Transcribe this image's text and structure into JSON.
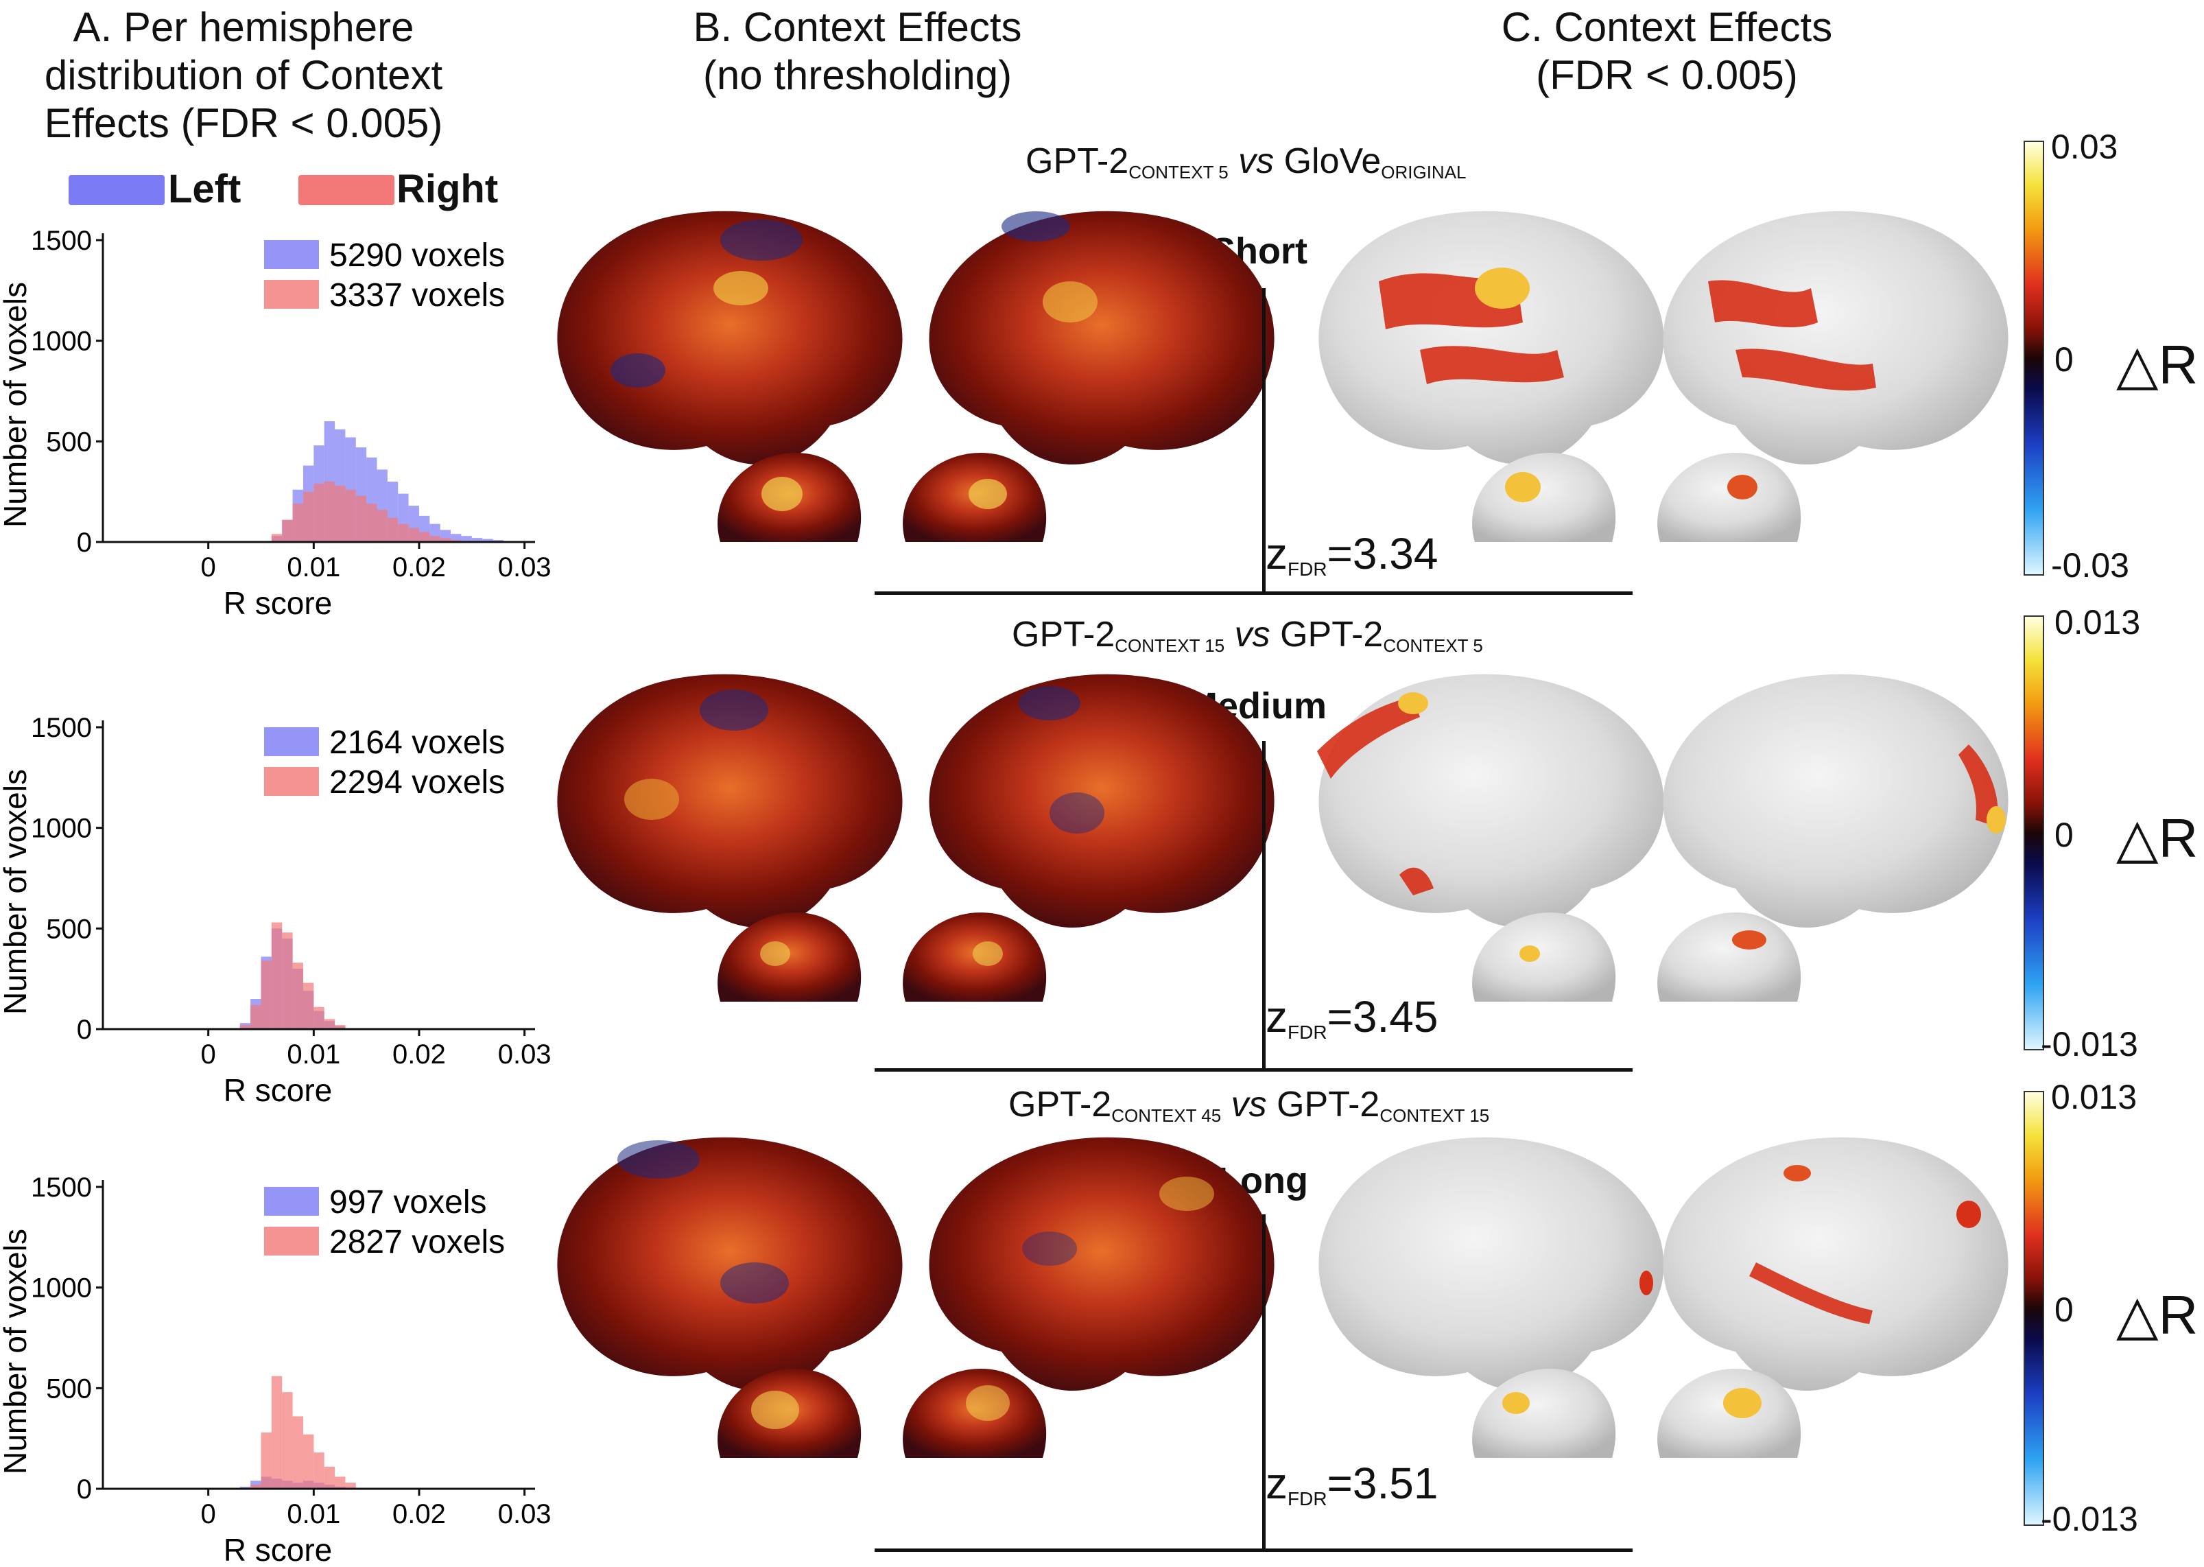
{
  "headers": {
    "a": [
      "A. Per hemisphere",
      "distribution of Context",
      "Effects (FDR < 0.005)"
    ],
    "b": [
      "B. Context Effects",
      "(no thresholding)"
    ],
    "c": [
      "C. Context Effects",
      "(FDR < 0.005)"
    ]
  },
  "legend": {
    "left": "Left",
    "right": "Right",
    "left_color": "#7b7bf5",
    "right_color": "#f37878"
  },
  "rows": [
    {
      "title_main_a": "GPT-2",
      "title_sub_a": "CONTEXT 5",
      "vs": "vs",
      "title_main_b": "GloVe",
      "title_sub_b": "ORIGINAL",
      "condition": "Short",
      "z_main": "z",
      "z_sub": "FDR",
      "z_value": "=3.34",
      "cbar_top": "0.03",
      "cbar_mid": "0",
      "cbar_bottom": "-0.03",
      "delta": "△R"
    },
    {
      "title_main_a": "GPT-2",
      "title_sub_a": "CONTEXT 15",
      "vs": "vs",
      "title_main_b": "GPT-2",
      "title_sub_b": "CONTEXT 5",
      "condition": "Medium",
      "z_main": "z",
      "z_sub": "FDR",
      "z_value": "=3.45",
      "cbar_top": "0.013",
      "cbar_mid": "0",
      "cbar_bottom": "-0.013",
      "delta": "△R"
    },
    {
      "title_main_a": "GPT-2",
      "title_sub_a": "CONTEXT 45",
      "vs": "vs",
      "title_main_b": "GPT-2",
      "title_sub_b": "CONTEXT 15",
      "condition": "Long",
      "z_main": "z",
      "z_sub": "FDR",
      "z_value": "=3.51",
      "cbar_top": "0.013",
      "cbar_mid": "0",
      "cbar_bottom": "-0.013",
      "delta": "△R"
    }
  ],
  "chart_data": [
    {
      "type": "bar",
      "xlabel": "R score",
      "ylabel": "Number of voxels",
      "xlim": [
        -0.01,
        0.031
      ],
      "ylim": [
        0,
        1500
      ],
      "xticks": [
        "0",
        "0.01",
        "0.02",
        "0.03"
      ],
      "yticks": [
        "0",
        "500",
        "1000",
        "1500"
      ],
      "bin_width": 0.001,
      "series": [
        {
          "name": "5290 voxels",
          "color": "#7b7bf5",
          "bins": [
            0.006,
            0.007,
            0.008,
            0.009,
            0.01,
            0.011,
            0.012,
            0.013,
            0.014,
            0.015,
            0.016,
            0.017,
            0.018,
            0.019,
            0.02,
            0.021,
            0.022,
            0.023,
            0.024,
            0.025,
            0.026,
            0.027,
            0.028
          ],
          "values": [
            30,
            110,
            260,
            380,
            480,
            600,
            560,
            520,
            470,
            420,
            360,
            300,
            240,
            180,
            130,
            90,
            60,
            40,
            30,
            20,
            15,
            10,
            5
          ]
        },
        {
          "name": "3337 voxels",
          "color": "#f37878",
          "bins": [
            0.006,
            0.007,
            0.008,
            0.009,
            0.01,
            0.011,
            0.012,
            0.013,
            0.014,
            0.015,
            0.016,
            0.017,
            0.018,
            0.019,
            0.02,
            0.021,
            0.022,
            0.023,
            0.024,
            0.025
          ],
          "values": [
            40,
            110,
            190,
            250,
            290,
            300,
            280,
            260,
            230,
            190,
            160,
            120,
            90,
            70,
            50,
            30,
            20,
            10,
            5,
            3
          ]
        }
      ]
    },
    {
      "type": "bar",
      "xlabel": "R score",
      "ylabel": "Number of voxels",
      "xlim": [
        -0.01,
        0.031
      ],
      "ylim": [
        0,
        1500
      ],
      "xticks": [
        "0",
        "0.01",
        "0.02",
        "0.03"
      ],
      "yticks": [
        "0",
        "500",
        "1000",
        "1500"
      ],
      "bin_width": 0.001,
      "series": [
        {
          "name": "2164 voxels",
          "color": "#7b7bf5",
          "bins": [
            0.003,
            0.004,
            0.005,
            0.006,
            0.007,
            0.008,
            0.009,
            0.01,
            0.011,
            0.012
          ],
          "values": [
            30,
            150,
            360,
            500,
            450,
            300,
            190,
            90,
            40,
            15
          ]
        },
        {
          "name": "2294 voxels",
          "color": "#f37878",
          "bins": [
            0.003,
            0.004,
            0.005,
            0.006,
            0.007,
            0.008,
            0.009,
            0.01,
            0.011,
            0.012
          ],
          "values": [
            20,
            120,
            340,
            530,
            480,
            330,
            230,
            110,
            50,
            20
          ]
        }
      ]
    },
    {
      "type": "bar",
      "xlabel": "R score",
      "ylabel": "Number of voxels",
      "xlim": [
        -0.01,
        0.031
      ],
      "ylim": [
        0,
        1500
      ],
      "xticks": [
        "0",
        "0.01",
        "0.02",
        "0.03"
      ],
      "yticks": [
        "0",
        "500",
        "1000",
        "1500"
      ],
      "bin_width": 0.001,
      "series": [
        {
          "name": "997 voxels",
          "color": "#7b7bf5",
          "bins": [
            0.003,
            0.004,
            0.005,
            0.006,
            0.007,
            0.008,
            0.009,
            0.01,
            0.011,
            0.012
          ],
          "values": [
            10,
            40,
            60,
            50,
            40,
            30,
            40,
            30,
            20,
            10
          ]
        },
        {
          "name": "2827 voxels",
          "color": "#f37878",
          "bins": [
            0.004,
            0.005,
            0.006,
            0.007,
            0.008,
            0.009,
            0.01,
            0.011,
            0.012,
            0.013
          ],
          "values": [
            20,
            280,
            560,
            480,
            360,
            270,
            180,
            110,
            60,
            30
          ]
        }
      ]
    }
  ]
}
